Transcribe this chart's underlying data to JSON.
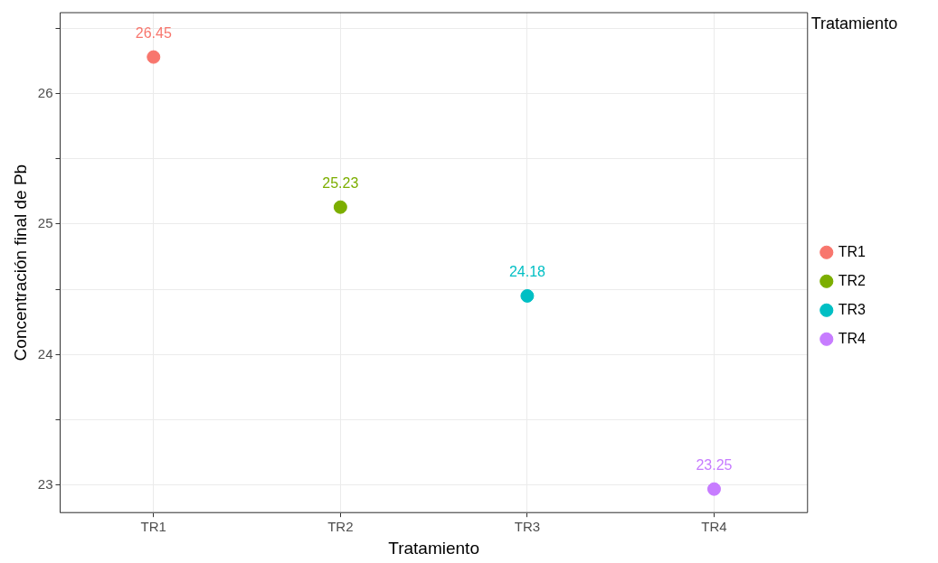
{
  "chart_data": {
    "type": "scatter",
    "xlabel": "Tratamiento",
    "ylabel": "Concentración final de Pb",
    "legend_title": "Tratamiento",
    "legend": "right",
    "marker": "circle",
    "grid": true,
    "categories": [
      "TR1",
      "TR2",
      "TR3",
      "TR4"
    ],
    "ylim": [
      22.79,
      26.62
    ],
    "yticks": [
      {
        "value": 23,
        "label": "23"
      },
      {
        "value": 23.5,
        "label": null
      },
      {
        "value": 24,
        "label": "24"
      },
      {
        "value": 24.5,
        "label": null
      },
      {
        "value": 25,
        "label": "25"
      },
      {
        "value": 25.5,
        "label": null
      },
      {
        "value": 26,
        "label": "26"
      },
      {
        "value": 26.5,
        "label": null
      }
    ],
    "series": [
      {
        "name": "TR1",
        "color": "#f8766d",
        "x": [
          "TR1"
        ],
        "values": [
          26.28
        ]
      },
      {
        "name": "TR2",
        "color": "#7cae00",
        "x": [
          "TR2"
        ],
        "values": [
          25.13
        ]
      },
      {
        "name": "TR3",
        "color": "#00bfc4",
        "x": [
          "TR3"
        ],
        "values": [
          24.45
        ]
      },
      {
        "name": "TR4",
        "color": "#c77cff",
        "x": [
          "TR4"
        ],
        "values": [
          22.97
        ]
      }
    ],
    "annotations": [
      "26.45",
      "25.23",
      "24.18",
      "23.25"
    ]
  }
}
